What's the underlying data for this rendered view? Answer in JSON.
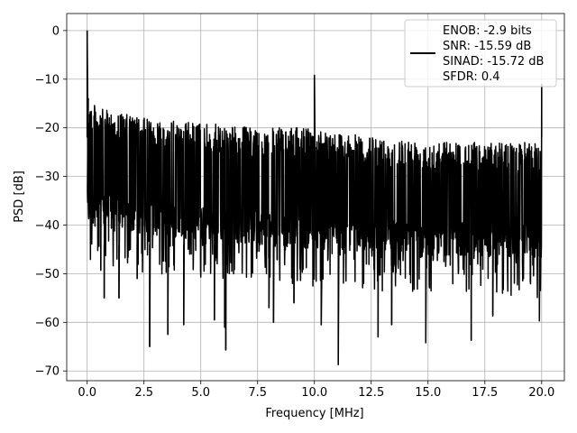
{
  "chart_data": {
    "type": "line",
    "title": "",
    "xlabel": "Frequency [MHz]",
    "ylabel": "PSD [dB]",
    "xlim": [
      -0.9,
      21.0
    ],
    "ylim": [
      -72.0,
      3.5
    ],
    "grid": true,
    "legend_placement": "top-right",
    "line_color": "#000000",
    "x_ticks": [
      {
        "value": 0.0,
        "label": "0.0"
      },
      {
        "value": 2.5,
        "label": "2.5"
      },
      {
        "value": 5.0,
        "label": "5.0"
      },
      {
        "value": 7.5,
        "label": "7.5"
      },
      {
        "value": 10.0,
        "label": "10.0"
      },
      {
        "value": 12.5,
        "label": "12.5"
      },
      {
        "value": 15.0,
        "label": "15.0"
      },
      {
        "value": 17.5,
        "label": "17.5"
      },
      {
        "value": 20.0,
        "label": "20.0"
      }
    ],
    "y_ticks": [
      {
        "value": 0,
        "label": "0"
      },
      {
        "value": -10,
        "label": "−10"
      },
      {
        "value": -20,
        "label": "−20"
      },
      {
        "value": -30,
        "label": "−30"
      },
      {
        "value": -40,
        "label": "−40"
      },
      {
        "value": -50,
        "label": "−50"
      },
      {
        "value": -60,
        "label": "−60"
      },
      {
        "value": -70,
        "label": "−70"
      }
    ],
    "legend_lines": [
      "ENOB: -2.9 bits",
      "SNR: -15.59 dB",
      "SINAD: -15.72 dB",
      "SFDR: 0.4"
    ],
    "series": [
      {
        "x_range": [
          0.0,
          20.0
        ],
        "noise_ceiling": [
          [
            0.0,
            -14
          ],
          [
            0.5,
            -16
          ],
          [
            2.5,
            -18
          ],
          [
            7.5,
            -20
          ],
          [
            10.0,
            -20
          ],
          [
            12.5,
            -22
          ],
          [
            17.5,
            -23
          ],
          [
            20.0,
            -23
          ]
        ],
        "noise_floor": [
          [
            0.0,
            -40
          ],
          [
            2.5,
            -42
          ],
          [
            10.0,
            -45
          ],
          [
            20.0,
            -47
          ]
        ],
        "peaks": [
          {
            "x": 0.0,
            "y": 0.0
          },
          {
            "x": 10.0,
            "y": -9.2
          },
          {
            "x": 20.0,
            "y": -11.0
          }
        ],
        "deep_dips": [
          {
            "x": 0.6,
            "y": -49.3
          },
          {
            "x": 0.75,
            "y": -55.0
          },
          {
            "x": 1.4,
            "y": -55.0
          },
          {
            "x": 2.2,
            "y": -51.0
          },
          {
            "x": 2.75,
            "y": -65.0
          },
          {
            "x": 3.55,
            "y": -62.5
          },
          {
            "x": 4.25,
            "y": -60.5
          },
          {
            "x": 5.6,
            "y": -59.5
          },
          {
            "x": 6.05,
            "y": -61.0
          },
          {
            "x": 6.1,
            "y": -65.7
          },
          {
            "x": 8.0,
            "y": -57.0
          },
          {
            "x": 8.2,
            "y": -60.0
          },
          {
            "x": 9.1,
            "y": -56.0
          },
          {
            "x": 10.3,
            "y": -60.5
          },
          {
            "x": 11.05,
            "y": -68.7
          },
          {
            "x": 12.8,
            "y": -63.0
          },
          {
            "x": 13.4,
            "y": -60.5
          },
          {
            "x": 14.9,
            "y": -64.2
          },
          {
            "x": 16.9,
            "y": -63.7
          },
          {
            "x": 17.85,
            "y": -58.7
          },
          {
            "x": 19.9,
            "y": -59.7
          }
        ]
      }
    ]
  }
}
